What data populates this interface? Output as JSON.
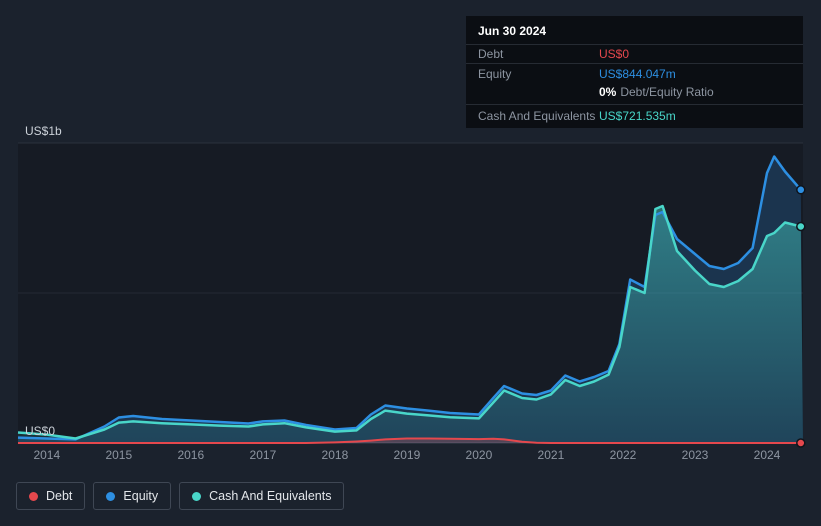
{
  "colors": {
    "debt": "#e5484d",
    "equity": "#2d8fe2",
    "cash": "#49d6c9",
    "background": "#1b222d",
    "plot_background": "#161b24",
    "tooltip_background": "#0b0e13"
  },
  "tooltip": {
    "date": "Jun 30 2024",
    "debt_label": "Debt",
    "debt_value": "US$0",
    "equity_label": "Equity",
    "equity_value": "US$844.047m",
    "ratio_value": "0%",
    "ratio_label": "Debt/Equity Ratio",
    "cash_label": "Cash And Equivalents",
    "cash_value": "US$721.535m"
  },
  "legend": {
    "items": [
      {
        "label": "Debt",
        "color": "#e5484d"
      },
      {
        "label": "Equity",
        "color": "#2d8fe2"
      },
      {
        "label": "Cash And Equivalents",
        "color": "#49d6c9"
      }
    ]
  },
  "chart_data": {
    "type": "area",
    "units": "US$ millions",
    "xlim": [
      2013.6,
      2024.5
    ],
    "ylim": [
      0,
      1000
    ],
    "gridlines": [
      1000,
      500,
      0
    ],
    "y_axis_labels": {
      "top": "US$1b",
      "zero": "US$0"
    },
    "x_ticks": [
      {
        "label": "2014",
        "value": 2014
      },
      {
        "label": "2015",
        "value": 2015
      },
      {
        "label": "2016",
        "value": 2016
      },
      {
        "label": "2017",
        "value": 2017
      },
      {
        "label": "2018",
        "value": 2018
      },
      {
        "label": "2019",
        "value": 2019
      },
      {
        "label": "2020",
        "value": 2020
      },
      {
        "label": "2021",
        "value": 2021
      },
      {
        "label": "2022",
        "value": 2022
      },
      {
        "label": "2023",
        "value": 2023
      },
      {
        "label": "2024",
        "value": 2024
      }
    ],
    "x": [
      2013.6,
      2014.0,
      2014.4,
      2014.8,
      2015.0,
      2015.2,
      2015.6,
      2016.0,
      2016.4,
      2016.8,
      2017.0,
      2017.3,
      2017.6,
      2018.0,
      2018.3,
      2018.5,
      2018.7,
      2019.0,
      2019.3,
      2019.6,
      2020.0,
      2020.2,
      2020.35,
      2020.6,
      2020.8,
      2021.0,
      2021.2,
      2021.4,
      2021.6,
      2021.8,
      2021.95,
      2022.1,
      2022.3,
      2022.45,
      2022.55,
      2022.75,
      2023.0,
      2023.2,
      2023.4,
      2023.6,
      2023.8,
      2024.0,
      2024.1,
      2024.25,
      2024.47
    ],
    "series": [
      {
        "name": "Debt",
        "color_key": "debt",
        "values": [
          0,
          0,
          0,
          0,
          0,
          0,
          0,
          0,
          0,
          0,
          0,
          0,
          0,
          2,
          5,
          8,
          12,
          15,
          15,
          14,
          13,
          14,
          12,
          4,
          1,
          0,
          0,
          0,
          0,
          0,
          0,
          0,
          0,
          0,
          0,
          0,
          0,
          0,
          0,
          0,
          0,
          0,
          0,
          0,
          0
        ]
      },
      {
        "name": "Equity",
        "color_key": "equity",
        "values": [
          18,
          15,
          12,
          55,
          85,
          90,
          80,
          75,
          70,
          65,
          72,
          75,
          60,
          45,
          50,
          95,
          125,
          115,
          108,
          100,
          95,
          150,
          190,
          165,
          160,
          175,
          225,
          205,
          220,
          240,
          330,
          545,
          520,
          760,
          770,
          680,
          630,
          590,
          580,
          600,
          650,
          900,
          955,
          905,
          844.047
        ]
      },
      {
        "name": "Cash And Equivalents",
        "color_key": "cash",
        "values": [
          35,
          28,
          15,
          45,
          68,
          72,
          66,
          62,
          58,
          55,
          62,
          66,
          52,
          38,
          42,
          80,
          108,
          98,
          92,
          86,
          82,
          135,
          175,
          150,
          145,
          162,
          210,
          190,
          205,
          228,
          320,
          520,
          500,
          780,
          790,
          640,
          575,
          530,
          520,
          540,
          580,
          690,
          700,
          735,
          721.535
        ]
      }
    ]
  }
}
